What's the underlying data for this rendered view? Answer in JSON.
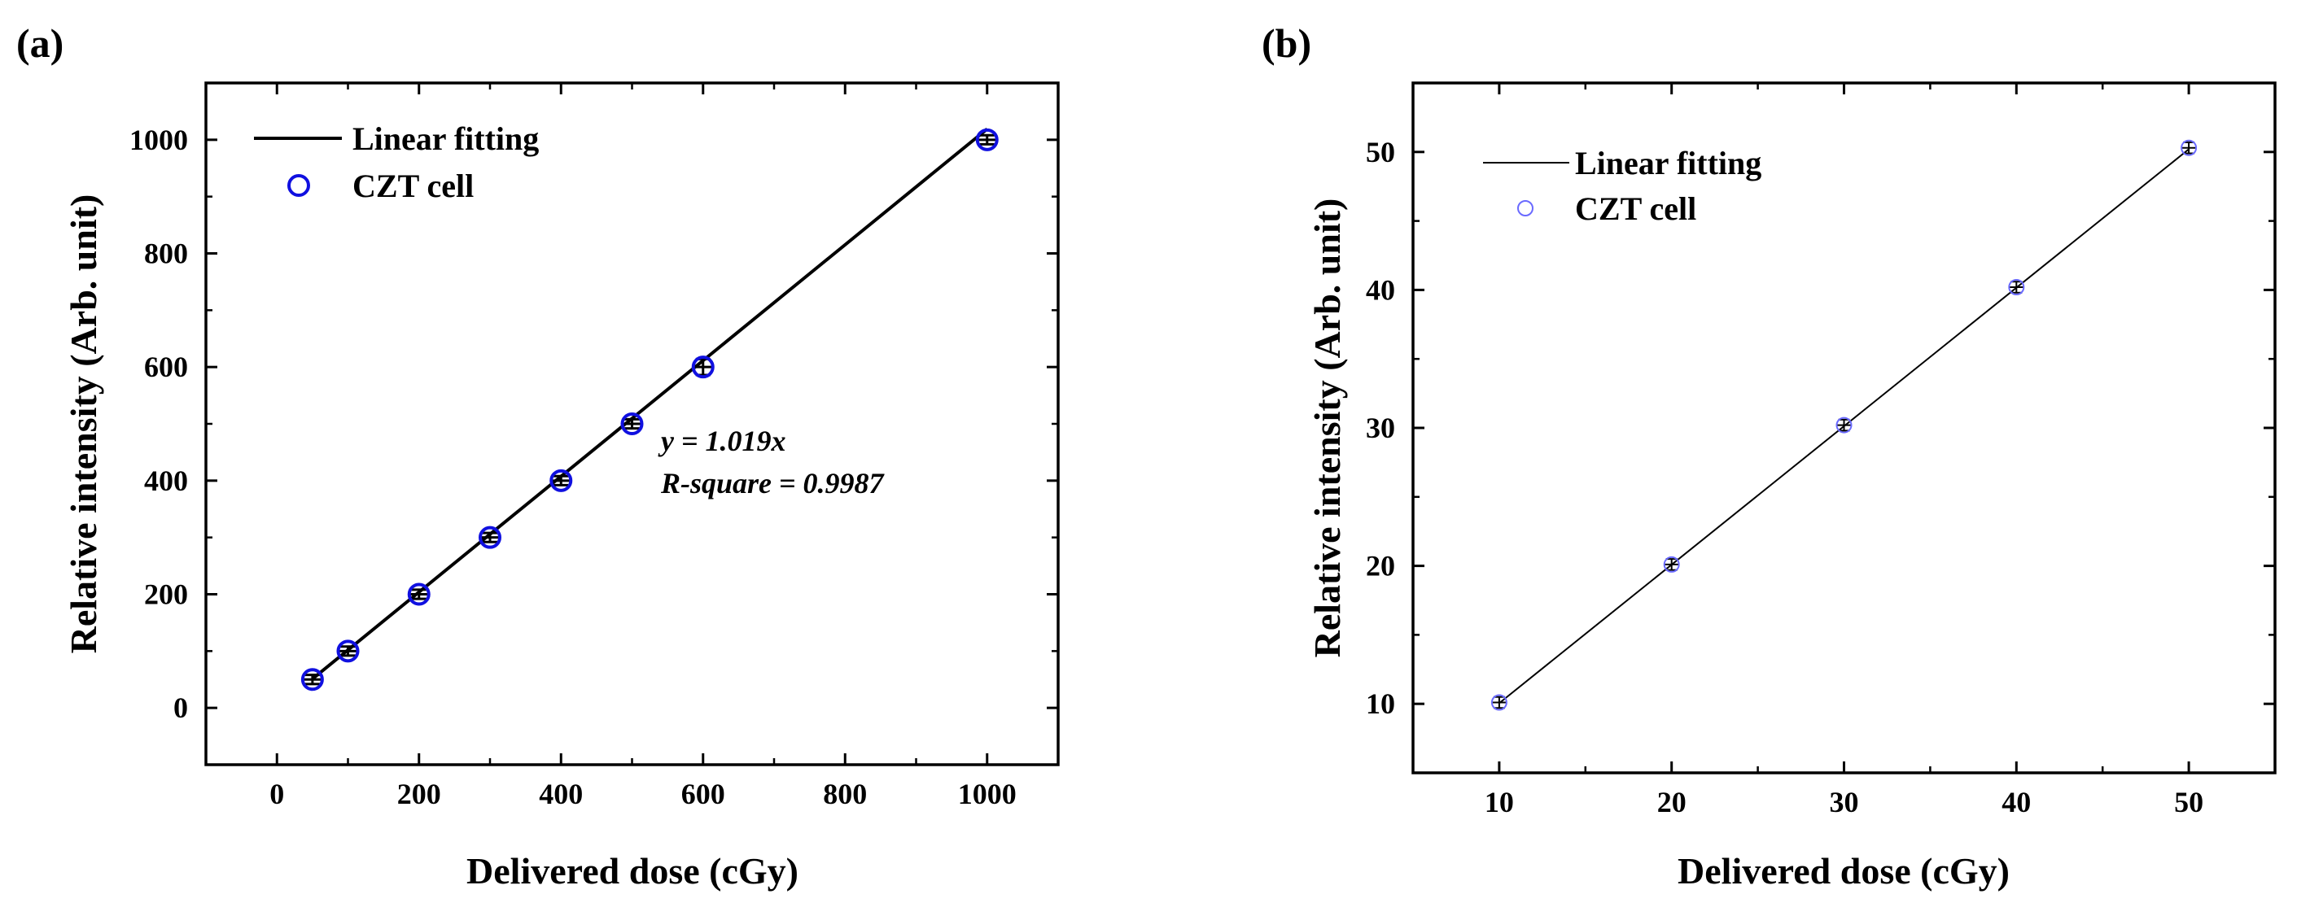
{
  "chart_data": [
    {
      "type": "scatter",
      "panel_label": "(a)",
      "xlabel": "Delivered dose (cGy)",
      "ylabel": "Relative intensity (Arb. unit)",
      "xlim": [
        -100,
        1100
      ],
      "ylim": [
        -100,
        1100
      ],
      "xticks": [
        0,
        200,
        400,
        600,
        800,
        1000
      ],
      "yticks": [
        0,
        200,
        400,
        600,
        800,
        1000
      ],
      "series": [
        {
          "name": "CZT cell",
          "marker": "open-circle",
          "color": "#1010e0",
          "x": [
            50,
            100,
            200,
            300,
            400,
            500,
            600,
            1000
          ],
          "y": [
            50,
            100,
            200,
            300,
            400,
            500,
            600,
            1000
          ],
          "yerr": [
            8,
            8,
            8,
            8,
            8,
            8,
            14,
            8
          ]
        },
        {
          "name": "Linear fitting",
          "marker": "line",
          "color": "#000000",
          "x": [
            50,
            1000
          ],
          "y": [
            50.95,
            1019
          ]
        }
      ],
      "annotations": [
        "y = 1.019x",
        "R-square = 0.9987"
      ]
    },
    {
      "type": "scatter",
      "panel_label": "(b)",
      "xlabel": "Delivered dose (cGy)",
      "ylabel": "Relative intensity (Arb. unit)",
      "xlim": [
        5,
        55
      ],
      "ylim": [
        5,
        55
      ],
      "xticks": [
        10,
        20,
        30,
        40,
        50
      ],
      "yticks": [
        10,
        20,
        30,
        40,
        50
      ],
      "series": [
        {
          "name": "CZT cell",
          "marker": "open-circle",
          "color": "#6a6aff",
          "x": [
            10,
            20,
            30,
            40,
            50
          ],
          "y": [
            10.1,
            20.1,
            30.2,
            40.2,
            50.3
          ],
          "yerr": [
            0.4,
            0.4,
            0.4,
            0.4,
            0.4
          ]
        },
        {
          "name": "Linear fitting",
          "marker": "line",
          "color": "#000000",
          "x": [
            10,
            50
          ],
          "y": [
            10.05,
            50.2
          ]
        }
      ]
    }
  ]
}
